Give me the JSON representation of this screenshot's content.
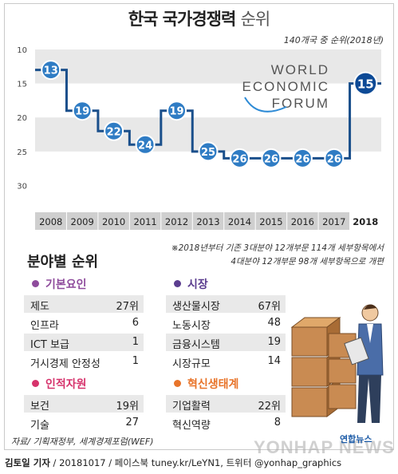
{
  "title": {
    "main": "한국 국가경쟁력",
    "accent": "순위"
  },
  "subtitle": "140개국 중 순위(2018년)",
  "wef_logo": [
    "WORLD",
    "ECONOMIC",
    "FORUM"
  ],
  "chart_data": {
    "type": "line",
    "x": [
      "2008",
      "2009",
      "2010",
      "2011",
      "2012",
      "2013",
      "2014",
      "2015",
      "2016",
      "2017",
      "2018"
    ],
    "series": [
      {
        "values": [
          13,
          19,
          22,
          24,
          19,
          25,
          26,
          26,
          26,
          26,
          15
        ]
      }
    ],
    "y_ticks": [
      "10",
      "15",
      "20",
      "25",
      "30"
    ],
    "ylim": [
      10,
      33
    ],
    "y_inverted": true,
    "highlight_last": true,
    "colors": {
      "line": "#1a4f8b",
      "marker": "#2f7cc4",
      "last_marker": "#0d4a96",
      "band": "#e8e8e8",
      "xaxis_bar": "#cfcfcf"
    }
  },
  "notes": [
    "※2018년부터 기존 3대분야 12개부문 114개 세부항목에서",
    "4대분야 12개부문 98개 세부항목으로 개편"
  ],
  "section_title": "분야별 순위",
  "categories": [
    {
      "name": "기본요인",
      "color": "#8e4b9c",
      "items": [
        {
          "label": "제도",
          "value": "27위"
        },
        {
          "label": "인프라",
          "value": "6"
        },
        {
          "label": "ICT 보급",
          "value": "1"
        },
        {
          "label": "거시경제 안정성",
          "value": "1"
        }
      ]
    },
    {
      "name": "시장",
      "color": "#5b3d8f",
      "items": [
        {
          "label": "생산물시장",
          "value": "67위"
        },
        {
          "label": "노동시장",
          "value": "48"
        },
        {
          "label": "금융시스템",
          "value": "19"
        },
        {
          "label": "시장규모",
          "value": "14"
        }
      ]
    },
    {
      "name": "인적자원",
      "color": "#d6336c",
      "items": [
        {
          "label": "보건",
          "value": "19위"
        },
        {
          "label": "기술",
          "value": "27"
        }
      ]
    },
    {
      "name": "혁신생태계",
      "color": "#e8742a",
      "items": [
        {
          "label": "기업활력",
          "value": "22위"
        },
        {
          "label": "혁신역량",
          "value": "8"
        }
      ]
    }
  ],
  "source": "자료/ 기획재정부, 세계경제포럼(WEF)",
  "credit": {
    "author": "김토일 기자",
    "rest": " / 20181017 / 페이스북 tuney.kr/LeYN1, 트위터 @yonhap_graphics"
  },
  "watermark": "YONHAP NEWS",
  "logo": "연합뉴스"
}
